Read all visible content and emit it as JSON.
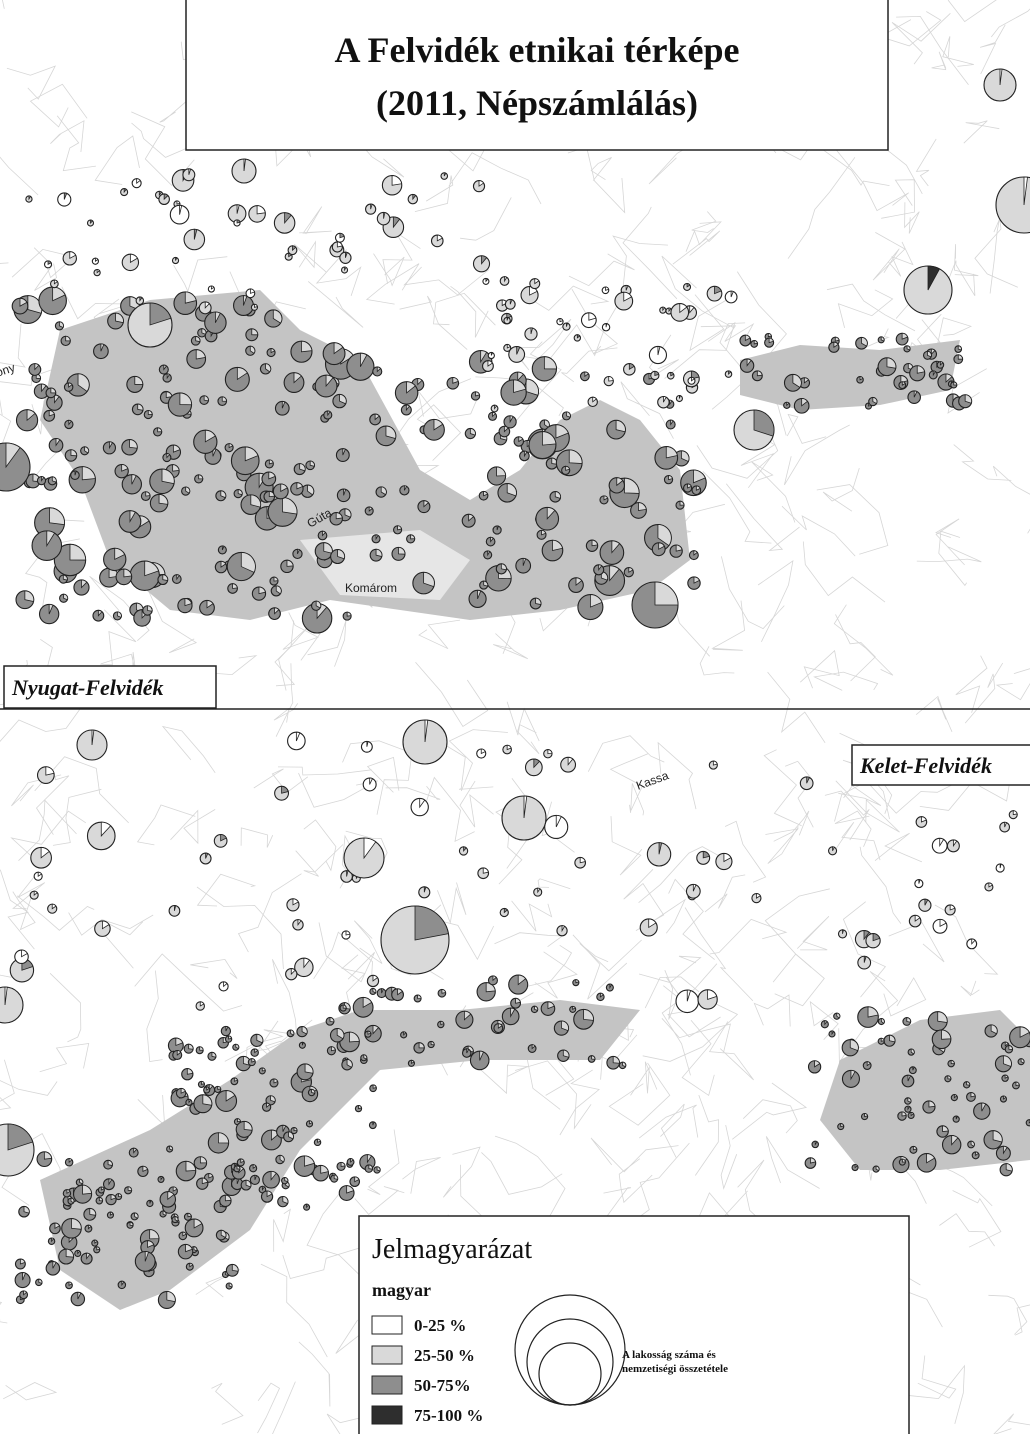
{
  "header": {
    "title_line1": "A Felvidék etnikai térképe",
    "title_line2": "(2011, Népszámlálás)"
  },
  "panels": {
    "west": "Nyugat-Felvidék",
    "east": "Kelet-Felvidék"
  },
  "places": {
    "pozsony": "Pozsony",
    "guta": "Gúta",
    "komarom": "Komárom",
    "kassa": "Kassa"
  },
  "legend": {
    "title": "Jelmagyarázat",
    "group": "magyar",
    "classes": [
      "0-25 %",
      "25-50 %",
      "50-75%",
      "75-100 %"
    ],
    "size_note_line1": "A lakosság száma és",
    "size_note_line2": "nemzetiségi összetétele"
  }
}
